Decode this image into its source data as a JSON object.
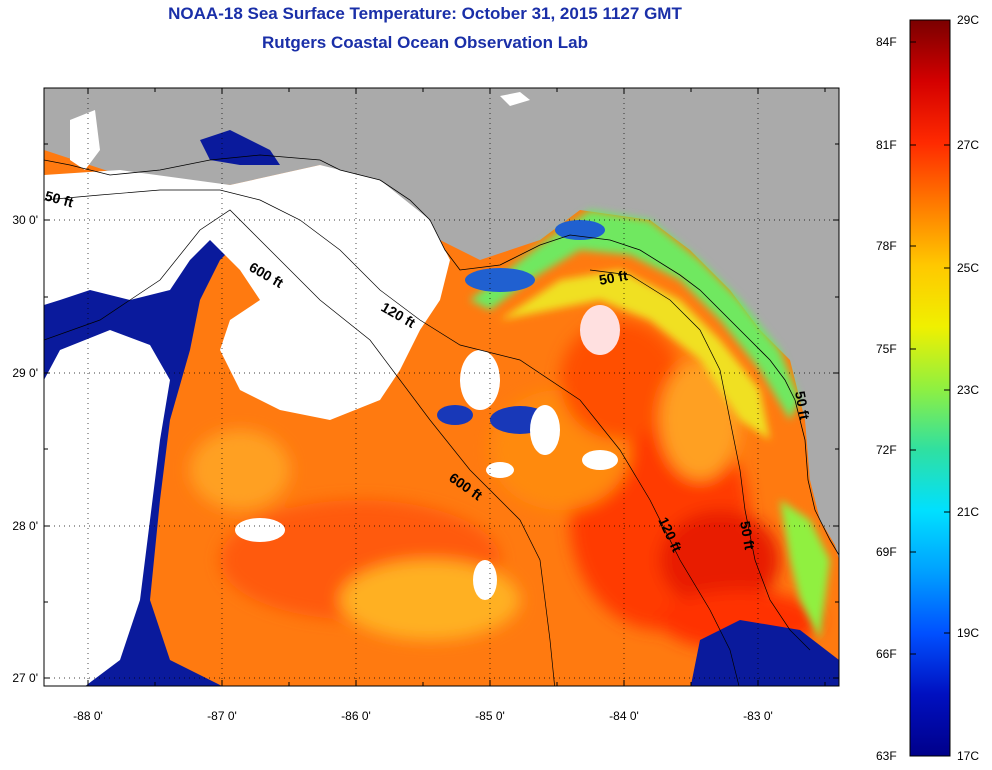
{
  "title": "NOAA-18 Sea Surface Temperature:  October 31, 2015 1127 GMT",
  "subtitle": "Rutgers Coastal Ocean Observation Lab",
  "map": {
    "lon_ticks": [
      "-88 0'",
      "-87 0'",
      "-86 0'",
      "-85 0'",
      "-84 0'",
      "-83 0'"
    ],
    "lat_ticks": [
      "30 0'",
      "29 0'",
      "28 0'",
      "27 0'"
    ],
    "contour_labels": [
      "50 ft",
      "600 ft",
      "120 ft",
      "50 ft",
      "600 ft",
      "120 ft",
      "50 ft",
      "50 ft"
    ]
  },
  "colorbar": {
    "fahrenheit": [
      "84F",
      "81F",
      "78F",
      "75F",
      "72F",
      "69F",
      "66F",
      "63F"
    ],
    "celsius": [
      "29C",
      "27C",
      "25C",
      "23C",
      "21C",
      "19C",
      "17C"
    ],
    "colors": [
      "#7a0000",
      "#d40000",
      "#ff2a00",
      "#ff7a00",
      "#ffc800",
      "#f0f000",
      "#90f040",
      "#30e0a0",
      "#00e0ff",
      "#00a0ff",
      "#0050ff",
      "#0010c0",
      "#00008a"
    ]
  },
  "colors": {
    "title": "#1a2fa8",
    "land": "#aaaaaa",
    "cloud": "#ffffff",
    "cold": "#0a1a9c"
  }
}
